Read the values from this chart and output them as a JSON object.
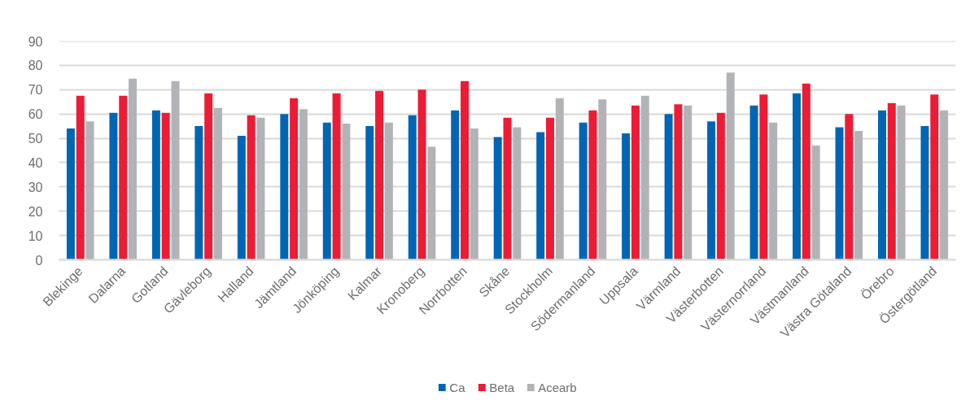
{
  "chart_data": {
    "type": "bar",
    "categories": [
      "Blekinge",
      "Dalarna",
      "Gotland",
      "Gävleborg",
      "Halland",
      "Jämtland",
      "Jönköping",
      "Kalmar",
      "Kronoberg",
      "Norrbotten",
      "Skåne",
      "Stockholm",
      "Södermanland",
      "Uppsala",
      "Värmland",
      "Västerbotten",
      "Västernorrland",
      "Västmanland",
      "Västra Götaland",
      "Örebro",
      "Östergötland"
    ],
    "series": [
      {
        "name": "Ca",
        "color": "#0066b3",
        "values": [
          54,
          60.5,
          61.5,
          55,
          51,
          60,
          56.5,
          55,
          59.5,
          61.5,
          50.5,
          52.5,
          56.5,
          52,
          60,
          57,
          63.5,
          68.5,
          54.5,
          61.5,
          55
        ]
      },
      {
        "name": "Beta",
        "color": "#ed1b34",
        "values": [
          67.5,
          67.5,
          60.5,
          68.5,
          59.5,
          66.5,
          68.5,
          69.5,
          70,
          73.5,
          58.5,
          58.5,
          61.5,
          63.5,
          64,
          60.5,
          68,
          72.5,
          60,
          64.5,
          68
        ]
      },
      {
        "name": "Acearb",
        "color": "#b1b3b6",
        "values": [
          57,
          74.5,
          73.5,
          62.5,
          58.5,
          62,
          56,
          56.5,
          46.5,
          54,
          54.5,
          66.5,
          66,
          67.5,
          63.5,
          77,
          56.5,
          47,
          53,
          63.5,
          61.5
        ]
      }
    ],
    "ylim": [
      0,
      90
    ],
    "yticks": [
      0,
      10,
      20,
      30,
      40,
      50,
      60,
      70,
      80,
      90
    ],
    "grid": "y",
    "legend": "bottom"
  }
}
